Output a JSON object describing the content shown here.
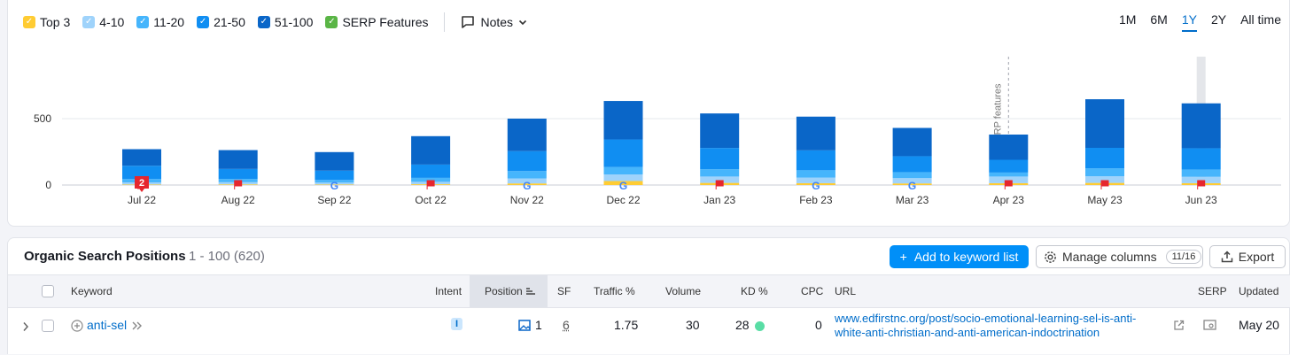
{
  "legend": {
    "items": [
      {
        "label": "Top 3",
        "color": "#ffcc33"
      },
      {
        "label": "4-10",
        "color": "#9fd3fb"
      },
      {
        "label": "11-20",
        "color": "#46b5fc"
      },
      {
        "label": "21-50",
        "color": "#108ef2"
      },
      {
        "label": "51-100",
        "color": "#0a66c8"
      },
      {
        "label": "SERP Features",
        "color": "#5ab546"
      }
    ],
    "notes_label": "Notes"
  },
  "ranges": [
    "1M",
    "6M",
    "1Y",
    "2Y",
    "All time"
  ],
  "ranges_active": "1Y",
  "chart_data": {
    "type": "bar",
    "stacked": true,
    "categories": [
      "Jul 22",
      "Aug 22",
      "Sep 22",
      "Oct 22",
      "Nov 22",
      "Dec 22",
      "Jan 23",
      "Feb 23",
      "Mar 23",
      "Apr 23",
      "May 23",
      "Jun 23"
    ],
    "series": [
      {
        "name": "Top 3",
        "color": "#ffcc33",
        "values": [
          4,
          5,
          4,
          6,
          12,
          30,
          16,
          14,
          12,
          14,
          16,
          14
        ]
      },
      {
        "name": "4-10",
        "color": "#9fd3fb",
        "values": [
          16,
          16,
          14,
          18,
          38,
          50,
          48,
          42,
          40,
          50,
          50,
          48
        ]
      },
      {
        "name": "11-20",
        "color": "#46b5fc",
        "values": [
          25,
          25,
          20,
          30,
          55,
          55,
          55,
          55,
          45,
          30,
          60,
          55
        ]
      },
      {
        "name": "21-50",
        "color": "#108ef2",
        "values": [
          100,
          75,
          70,
          100,
          150,
          208,
          160,
          150,
          120,
          96,
          154,
          160
        ]
      },
      {
        "name": "51-100",
        "color": "#0a66c8",
        "values": [
          125,
          142,
          140,
          214,
          245,
          290,
          260,
          254,
          213,
          190,
          366,
          338
        ]
      }
    ],
    "markers": [
      "flag",
      "flag",
      "google",
      "flag",
      "google",
      "google",
      "flag",
      "google",
      "google",
      "flag",
      "flag",
      "flag"
    ],
    "marker_badge": {
      "index": 0,
      "text": "2"
    },
    "annotation": {
      "index": 9,
      "text": "SERP features"
    },
    "y_ticks": [
      0,
      500
    ],
    "ylim": [
      0,
      720
    ],
    "grid": true
  },
  "table": {
    "title": "Organic Search Positions",
    "range": "1 - 100 (620)",
    "add_label": "Add to keyword list",
    "manage_label": "Manage columns",
    "manage_count": "11/16",
    "export_label": "Export",
    "columns": {
      "keyword": "Keyword",
      "intent": "Intent",
      "position": "Position",
      "sf": "SF",
      "traffic": "Traffic %",
      "volume": "Volume",
      "kd": "KD %",
      "cpc": "CPC",
      "url": "URL",
      "serp": "SERP",
      "updated": "Updated"
    },
    "row": {
      "keyword": "anti-sel",
      "intent": "I",
      "position": "1",
      "sf": "6",
      "traffic": "1.75",
      "volume": "30",
      "kd": "28",
      "cpc": "0",
      "url_line1": "www.edfirstnc.org/post/socio-emotional-learning-sel-is-anti-",
      "url_line2": "white-anti-christian-and-anti-american-indoctrination",
      "updated": "May 20"
    }
  }
}
